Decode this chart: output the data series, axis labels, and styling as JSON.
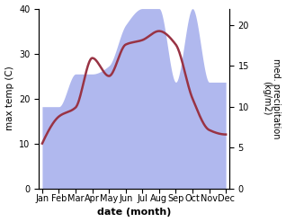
{
  "months": [
    "Jan",
    "Feb",
    "Mar",
    "Apr",
    "May",
    "Jun",
    "Jul",
    "Aug",
    "Sep",
    "Oct",
    "Nov",
    "Dec"
  ],
  "month_positions": [
    0,
    1,
    2,
    3,
    4,
    5,
    6,
    7,
    8,
    9,
    10,
    11
  ],
  "temperature": [
    10,
    16,
    18,
    29,
    25,
    32,
    33,
    35,
    32,
    20,
    13,
    12
  ],
  "precipitation": [
    10,
    10,
    14,
    14,
    15,
    20,
    22,
    22,
    13,
    22,
    13,
    13
  ],
  "temp_color": "#993344",
  "precip_color": "#b0b8ee",
  "xlabel": "date (month)",
  "ylabel_left": "max temp (C)",
  "ylabel_right": "med. precipitation\n(kg/m2)",
  "ylim_left": [
    0,
    40
  ],
  "ylim_right": [
    0,
    22
  ],
  "yticks_left": [
    0,
    10,
    20,
    30,
    40
  ],
  "yticks_right": [
    0,
    5,
    10,
    15,
    20
  ],
  "background_color": "#ffffff",
  "linewidth": 1.8
}
